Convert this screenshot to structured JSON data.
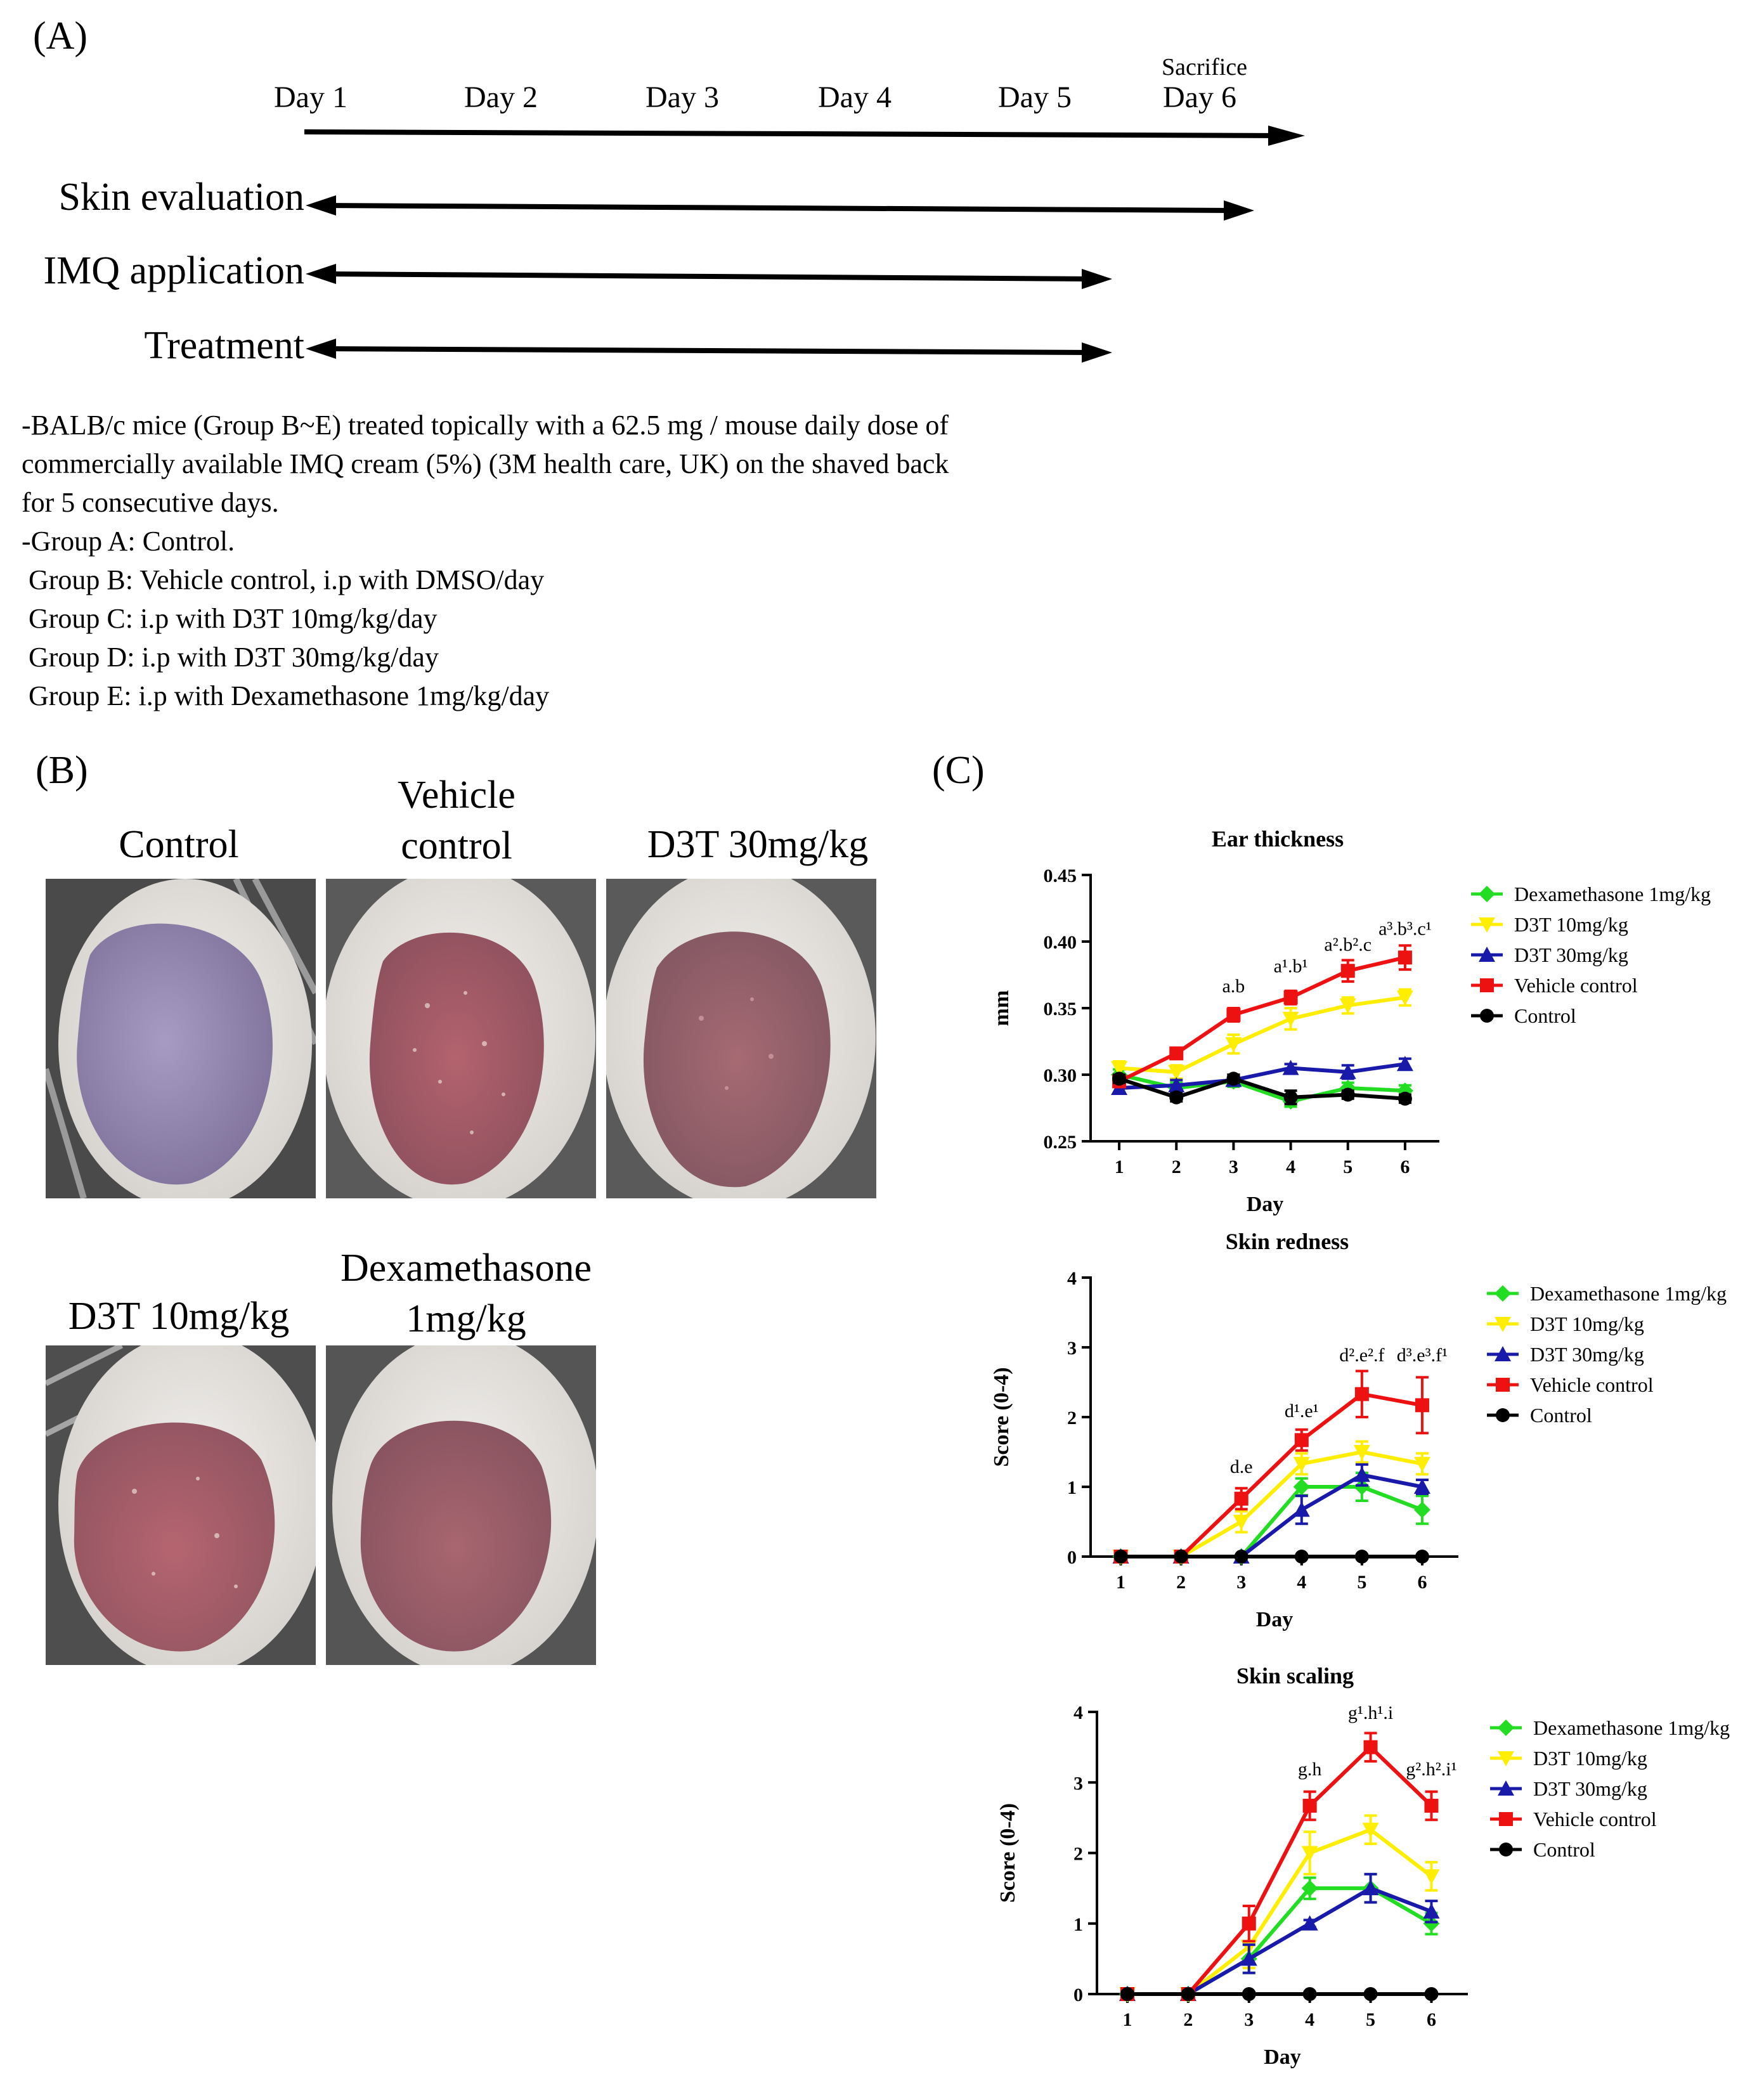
{
  "panelA": {
    "label": "(A)",
    "days": [
      "Day 1",
      "Day 2",
      "Day 3",
      "Day 4",
      "Day 5",
      "Day 6"
    ],
    "sacrifice_label": "Sacrifice",
    "rows": [
      {
        "label": "Skin evaluation"
      },
      {
        "label": "IMQ application"
      },
      {
        "label": "Treatment"
      }
    ],
    "description": [
      "-BALB/c mice (Group B~E) treated topically with a 62.5 mg / mouse daily dose of",
      "commercially available IMQ cream (5%) (3M health care, UK) on the shaved back",
      "for 5 consecutive days.",
      "-Group A: Control.",
      " Group B: Vehicle control, i.p with DMSO/day",
      " Group C: i.p with D3T 10mg/kg/day",
      " Group D: i.p with D3T 30mg/kg/day",
      " Group E: i.p with Dexamethasone 1mg/kg/day"
    ]
  },
  "panelB": {
    "label": "(B)",
    "photos": [
      {
        "title": "Control"
      },
      {
        "title": "Vehicle\ncontrol"
      },
      {
        "title": "D3T 30mg/kg"
      },
      {
        "title": "D3T 10mg/kg"
      },
      {
        "title": "Dexamethasone\n1mg/kg"
      }
    ]
  },
  "panelC": {
    "label": "(C)"
  },
  "colors": {
    "dexamethasone": "#22dd22",
    "d3t10": "#ffee00",
    "d3t30": "#1a1aaa",
    "vehicle": "#ee1111",
    "control": "#000000"
  },
  "chart_data": [
    {
      "type": "line",
      "title": "Ear thickness",
      "xlabel": "Day",
      "ylabel": "mm",
      "x": [
        1,
        2,
        3,
        4,
        5,
        6
      ],
      "ylim": [
        0.25,
        0.45
      ],
      "yticks": [
        "0.25",
        "0.30",
        "0.35",
        "0.40",
        "0.45"
      ],
      "series": [
        {
          "name": "Dexamethasone 1mg/kg",
          "color": "#22dd22",
          "marker": "diamond",
          "values": [
            0.3,
            0.29,
            0.295,
            0.28,
            0.29,
            0.288
          ],
          "errors": [
            0.004,
            0.004,
            0.004,
            0.004,
            0.004,
            0.004
          ]
        },
        {
          "name": "D3T 10mg/kg",
          "color": "#ffee00",
          "marker": "down",
          "values": [
            0.305,
            0.302,
            0.323,
            0.342,
            0.352,
            0.358
          ],
          "errors": [
            0.005,
            0.005,
            0.007,
            0.008,
            0.006,
            0.006
          ]
        },
        {
          "name": "D3T 30mg/kg",
          "color": "#1a1aaa",
          "marker": "up",
          "values": [
            0.29,
            0.292,
            0.296,
            0.305,
            0.302,
            0.308
          ],
          "errors": [
            0.004,
            0.004,
            0.004,
            0.003,
            0.005,
            0.004
          ]
        },
        {
          "name": "Vehicle control",
          "color": "#ee1111",
          "marker": "square",
          "values": [
            0.295,
            0.316,
            0.345,
            0.358,
            0.378,
            0.388
          ],
          "errors": [
            0.004,
            0.003,
            0.005,
            0.005,
            0.008,
            0.009
          ]
        },
        {
          "name": "Control",
          "color": "#000000",
          "marker": "circle",
          "values": [
            0.297,
            0.283,
            0.297,
            0.283,
            0.285,
            0.282
          ],
          "errors": [
            0.003,
            0.003,
            0.003,
            0.005,
            0.003,
            0.003
          ]
        }
      ],
      "annotations": [
        {
          "x": 3,
          "y": 0.362,
          "text": "a.b"
        },
        {
          "x": 4,
          "y": 0.377,
          "text": "a¹.b¹"
        },
        {
          "x": 5,
          "y": 0.393,
          "text": "a².b².c"
        },
        {
          "x": 6,
          "y": 0.405,
          "text": "a³.b³.c¹"
        }
      ]
    },
    {
      "type": "line",
      "title": "Skin redness",
      "xlabel": "Day",
      "ylabel": "Score (0-4)",
      "x": [
        1,
        2,
        3,
        4,
        5,
        6
      ],
      "ylim": [
        0,
        4
      ],
      "yticks": [
        "0",
        "1",
        "2",
        "3",
        "4"
      ],
      "series": [
        {
          "name": "Dexamethasone 1mg/kg",
          "color": "#22dd22",
          "marker": "diamond",
          "values": [
            0,
            0,
            0,
            1.0,
            1.0,
            0.67
          ],
          "errors": [
            0,
            0,
            0,
            0.12,
            0.2,
            0.2
          ]
        },
        {
          "name": "D3T 10mg/kg",
          "color": "#ffee00",
          "marker": "down",
          "values": [
            0,
            0,
            0.5,
            1.33,
            1.5,
            1.33
          ],
          "errors": [
            0,
            0,
            0.15,
            0.15,
            0.15,
            0.15
          ]
        },
        {
          "name": "D3T 30mg/kg",
          "color": "#1a1aaa",
          "marker": "up",
          "values": [
            0,
            0,
            0,
            0.67,
            1.17,
            1.0
          ],
          "errors": [
            0,
            0,
            0,
            0.2,
            0.15,
            0.1
          ]
        },
        {
          "name": "Vehicle control",
          "color": "#ee1111",
          "marker": "square",
          "values": [
            0,
            0,
            0.83,
            1.67,
            2.33,
            2.17
          ],
          "errors": [
            0,
            0,
            0.15,
            0.15,
            0.33,
            0.4
          ]
        },
        {
          "name": "Control",
          "color": "#000000",
          "marker": "circle",
          "values": [
            0,
            0,
            0,
            0,
            0,
            0
          ],
          "errors": [
            0,
            0,
            0,
            0,
            0,
            0
          ]
        }
      ],
      "annotations": [
        {
          "x": 3,
          "y": 1.2,
          "text": "d.e"
        },
        {
          "x": 4,
          "y": 2.0,
          "text": "d¹.e¹"
        },
        {
          "x": 5,
          "y": 2.8,
          "text": "d².e².f"
        },
        {
          "x": 6,
          "y": 2.8,
          "text": "d³.e³.f¹"
        }
      ]
    },
    {
      "type": "line",
      "title": "Skin scaling",
      "xlabel": "Day",
      "ylabel": "Score (0-4)",
      "x": [
        1,
        2,
        3,
        4,
        5,
        6
      ],
      "ylim": [
        0,
        4
      ],
      "yticks": [
        "0",
        "1",
        "2",
        "3",
        "4"
      ],
      "series": [
        {
          "name": "Dexamethasone 1mg/kg",
          "color": "#22dd22",
          "marker": "diamond",
          "values": [
            0,
            0,
            0.5,
            1.5,
            1.5,
            1.0
          ],
          "errors": [
            0,
            0,
            0.2,
            0.15,
            0.2,
            0.15
          ]
        },
        {
          "name": "D3T 10mg/kg",
          "color": "#ffee00",
          "marker": "down",
          "values": [
            0,
            0,
            0.67,
            2.0,
            2.33,
            1.67
          ],
          "errors": [
            0,
            0,
            0.3,
            0.3,
            0.2,
            0.2
          ]
        },
        {
          "name": "D3T 30mg/kg",
          "color": "#1a1aaa",
          "marker": "up",
          "values": [
            0,
            0,
            0.5,
            1.0,
            1.5,
            1.17
          ],
          "errors": [
            0,
            0,
            0.2,
            0.05,
            0.2,
            0.15
          ]
        },
        {
          "name": "Vehicle control",
          "color": "#ee1111",
          "marker": "square",
          "values": [
            0,
            0,
            1.0,
            2.67,
            3.5,
            2.67
          ],
          "errors": [
            0,
            0,
            0.25,
            0.2,
            0.2,
            0.2
          ]
        },
        {
          "name": "Control",
          "color": "#000000",
          "marker": "circle",
          "values": [
            0,
            0,
            0,
            0,
            0,
            0
          ],
          "errors": [
            0,
            0,
            0,
            0,
            0,
            0
          ]
        }
      ],
      "annotations": [
        {
          "x": 4,
          "y": 3.1,
          "text": "g.h"
        },
        {
          "x": 5,
          "y": 3.9,
          "text": "g¹.h¹.i"
        },
        {
          "x": 6,
          "y": 3.1,
          "text": "g².h².i¹"
        }
      ]
    }
  ]
}
